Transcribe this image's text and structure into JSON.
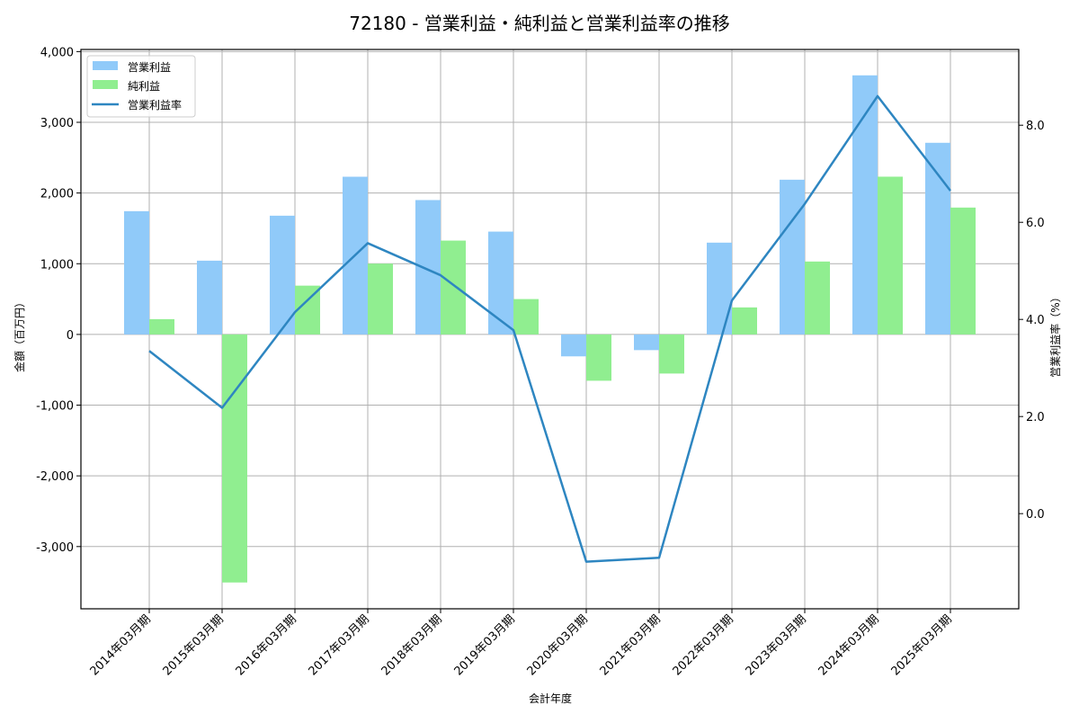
{
  "chart_data": {
    "type": "bar",
    "title": "72180 - 営業利益・純利益と営業利益率の推移",
    "xlabel": "会計年度",
    "ylabel": "金額（百万円）",
    "y2label": "営業利益率（%）",
    "categories": [
      "2014年03月期",
      "2015年03月期",
      "2016年03月期",
      "2017年03月期",
      "2018年03月期",
      "2019年03月期",
      "2020年03月期",
      "2021年03月期",
      "2022年03月期",
      "2023年03月期",
      "2024年03月期",
      "2025年03月期"
    ],
    "series": [
      {
        "name": "営業利益",
        "type": "bar",
        "axis": "left",
        "color": "#90CAF9",
        "values": [
          1743,
          1043,
          1679,
          2230,
          1900,
          1454,
          -310,
          -222,
          1298,
          2188,
          3664,
          2710
        ]
      },
      {
        "name": "純利益",
        "type": "bar",
        "axis": "left",
        "color": "#90EE90",
        "values": [
          216,
          -3508,
          690,
          1001,
          1327,
          500,
          -655,
          -553,
          382,
          1031,
          2231,
          1794
        ]
      },
      {
        "name": "営業利益率",
        "type": "line",
        "axis": "right",
        "color": "#2E86C1",
        "values": [
          3.35,
          2.18,
          4.15,
          5.57,
          4.91,
          3.78,
          -0.99,
          -0.91,
          4.39,
          6.38,
          8.6,
          6.65
        ]
      }
    ],
    "ylim": [
      -3880,
      4030
    ],
    "y2lim": [
      -1.96,
      9.56
    ],
    "yticks": [
      -3000,
      -2000,
      -1000,
      0,
      1000,
      2000,
      3000,
      4000
    ],
    "ytick_labels": [
      "-3,000",
      "-2,000",
      "-1,000",
      "0",
      "1,000",
      "2,000",
      "3,000",
      "4,000"
    ],
    "y2ticks": [
      0,
      2,
      4,
      6,
      8
    ],
    "y2tick_labels": [
      "0.0",
      "2.0",
      "4.0",
      "6.0",
      "8.0"
    ],
    "grid": true,
    "legend_position": "upper left"
  }
}
